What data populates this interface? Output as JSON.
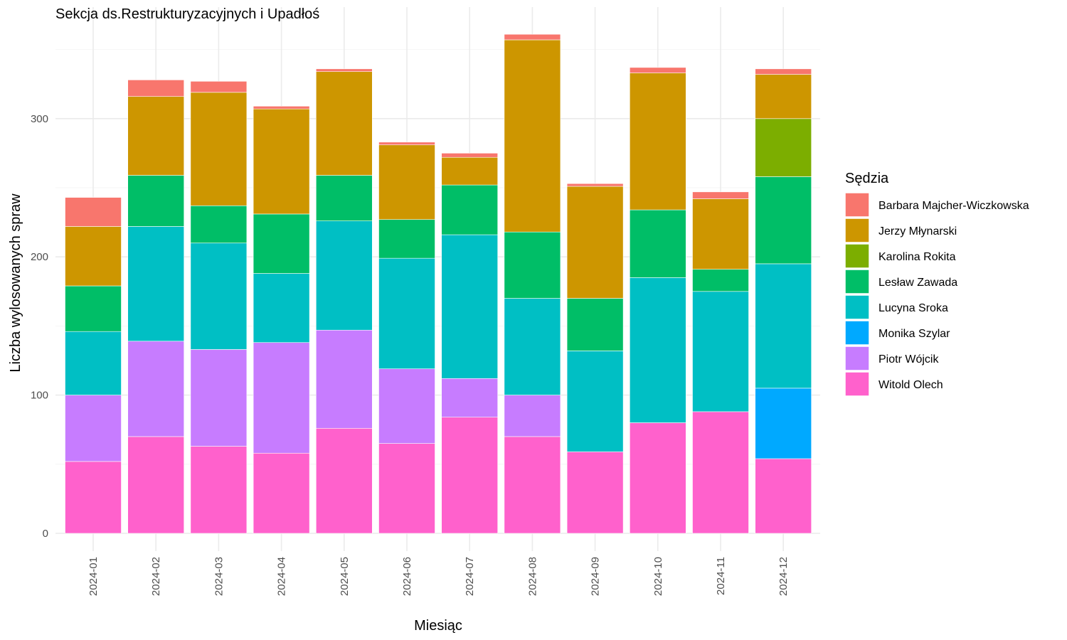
{
  "chart_data": {
    "type": "bar",
    "stacked": true,
    "title": "Sekcja ds.Restrukturyzacyjnych i Upadłoś",
    "xlabel": "Miesiąc",
    "ylabel": "Liczba wylosowanych spraw",
    "ylim": [
      0,
      370
    ],
    "yticks": [
      0,
      100,
      200,
      300
    ],
    "grid": true,
    "legend_title": "Sędzia",
    "legend_position": "right",
    "categories": [
      "2024-01",
      "2024-02",
      "2024-03",
      "2024-04",
      "2024-05",
      "2024-06",
      "2024-07",
      "2024-08",
      "2024-09",
      "2024-10",
      "2024-11",
      "2024-12"
    ],
    "series": [
      {
        "name": "Witold Olech",
        "color": "#FF61CC",
        "values": [
          52,
          70,
          63,
          58,
          76,
          65,
          84,
          70,
          59,
          80,
          88,
          54
        ]
      },
      {
        "name": "Piotr Wójcik",
        "color": "#C77CFF",
        "values": [
          48,
          69,
          70,
          80,
          71,
          54,
          28,
          30,
          0,
          0,
          0,
          0
        ]
      },
      {
        "name": "Monika Szylar",
        "color": "#00A9FF",
        "values": [
          0,
          0,
          0,
          0,
          0,
          0,
          0,
          0,
          0,
          0,
          0,
          51
        ]
      },
      {
        "name": "Lucyna Sroka",
        "color": "#00BFC4",
        "values": [
          46,
          83,
          77,
          50,
          79,
          80,
          104,
          70,
          73,
          105,
          87,
          90
        ]
      },
      {
        "name": "Lesław Zawada",
        "color": "#00BE67",
        "values": [
          33,
          37,
          27,
          43,
          33,
          28,
          36,
          48,
          38,
          49,
          16,
          63
        ]
      },
      {
        "name": "Karolina Rokita",
        "color": "#7CAE00",
        "values": [
          0,
          0,
          0,
          0,
          0,
          0,
          0,
          0,
          0,
          0,
          0,
          42
        ]
      },
      {
        "name": "Jerzy Młynarski",
        "color": "#CD9600",
        "values": [
          43,
          57,
          82,
          76,
          75,
          54,
          20,
          139,
          81,
          99,
          51,
          32
        ]
      },
      {
        "name": "Barbara Majcher-Wiczkowska",
        "color": "#F8766D",
        "values": [
          21,
          12,
          8,
          2,
          2,
          2,
          3,
          4,
          2,
          4,
          5,
          4
        ]
      }
    ],
    "legend_order": [
      "Barbara Majcher-Wiczkowska",
      "Jerzy Młynarski",
      "Karolina Rokita",
      "Lesław Zawada",
      "Lucyna Sroka",
      "Monika Szylar",
      "Piotr Wójcik",
      "Witold Olech"
    ]
  }
}
